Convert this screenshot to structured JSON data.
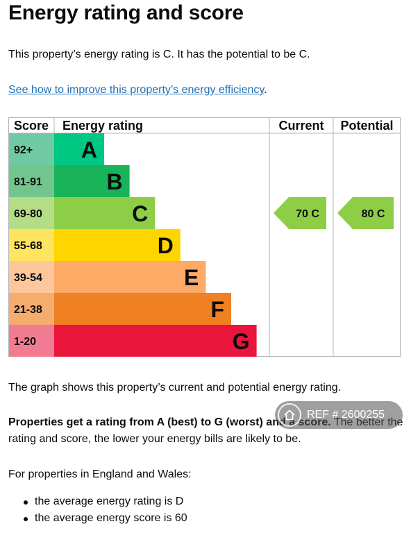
{
  "heading": "Energy rating and score",
  "intro": "This property’s energy rating is C. It has the potential to be C.",
  "improve_link": "See how to improve this property’s energy efficiency",
  "improve_link_suffix": ".",
  "chart_data": {
    "type": "table",
    "headers": {
      "score": "Score",
      "rating": "Energy rating",
      "current": "Current",
      "potential": "Potential"
    },
    "bands": [
      {
        "score": "92+",
        "letter": "A",
        "color": "#00c781",
        "score_bg": "#6fcaa3"
      },
      {
        "score": "81-91",
        "letter": "B",
        "color": "#19b459",
        "score_bg": "#72c68d"
      },
      {
        "score": "69-80",
        "letter": "C",
        "color": "#8dce46",
        "score_bg": "#b4dd85"
      },
      {
        "score": "55-68",
        "letter": "D",
        "color": "#ffd500",
        "score_bg": "#ffe45f"
      },
      {
        "score": "39-54",
        "letter": "E",
        "color": "#fcaa65",
        "score_bg": "#fdc79b"
      },
      {
        "score": "21-38",
        "letter": "F",
        "color": "#ef8023",
        "score_bg": "#f5ac6f"
      },
      {
        "score": "1-20",
        "letter": "G",
        "color": "#e9153b",
        "score_bg": "#f17b90"
      }
    ],
    "current": {
      "score": 70,
      "letter": "C",
      "label": "70  C"
    },
    "potential": {
      "score": 80,
      "letter": "C",
      "label": "80  C"
    }
  },
  "graph_caption": "The graph shows this property’s current and potential energy rating.",
  "rating_note_bold": "Properties get a rating from A (best) to G (worst) and a score.",
  "rating_note_rest": " The better the rating and score, the lower your energy bills are likely to be.",
  "region_note": "For properties in England and Wales:",
  "averages": [
    "the average energy rating is D",
    "the average energy score is 60"
  ],
  "watermark": {
    "icon": "home-icon",
    "text": "REF # 2600255"
  }
}
